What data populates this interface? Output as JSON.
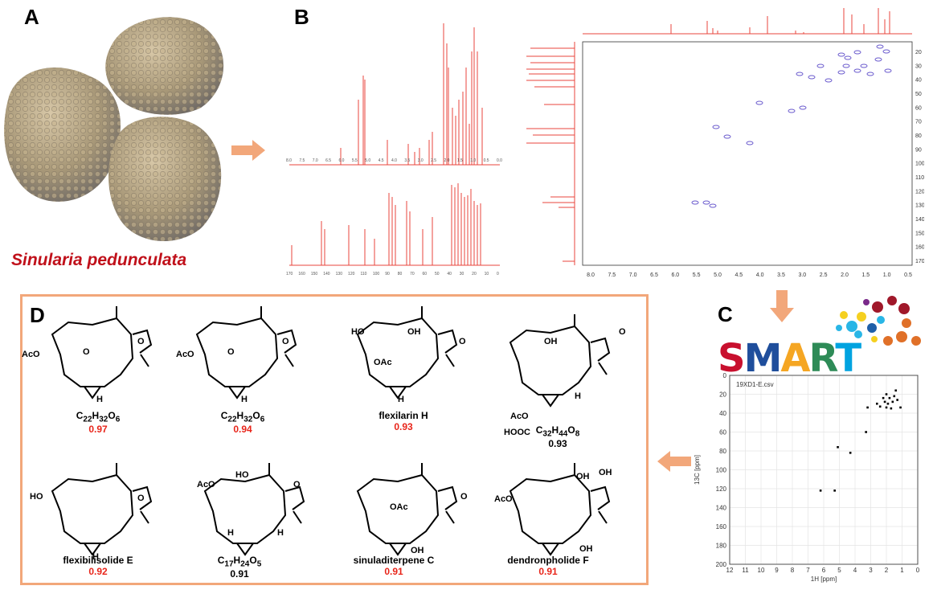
{
  "panels": {
    "a": "A",
    "b": "B",
    "c": "C",
    "d": "D"
  },
  "species": "Sinularia pedunculata",
  "logo_text": [
    "S",
    "M",
    "A",
    "R",
    "T"
  ],
  "logo_colors": [
    "#c8102e",
    "#1f4e9c",
    "#f5a623",
    "#2e8b57",
    "#00a3e0"
  ],
  "spectra": {
    "h1_ticks": [
      "8.0",
      "7.5",
      "7.0",
      "6.5",
      "6.0",
      "5.5",
      "5.0",
      "4.5",
      "4.0",
      "3.5",
      "3.0",
      "2.5",
      "2.0",
      "1.5",
      "1.0",
      "0.5",
      "0.0"
    ],
    "c13_ticks": [
      "170",
      "160",
      "150",
      "140",
      "130",
      "120",
      "110",
      "100",
      "90",
      "80",
      "70",
      "60",
      "50",
      "40",
      "30",
      "20",
      "10",
      "0"
    ],
    "hsqc_x_ticks": [
      "8.0",
      "7.5",
      "7.0",
      "6.5",
      "6.0",
      "5.5",
      "5.0",
      "4.5",
      "4.0",
      "3.5",
      "3.0",
      "2.5",
      "2.0",
      "1.5",
      "1.0",
      "0.5"
    ],
    "hsqc_y_ticks": [
      "20",
      "30",
      "40",
      "50",
      "60",
      "70",
      "80",
      "90",
      "100",
      "110",
      "120",
      "130",
      "140",
      "150",
      "160",
      "170"
    ]
  },
  "chart_data": {
    "type": "scatter",
    "title": "19XD1-E.csv",
    "xlabel": "1H [ppm]",
    "ylabel": "13C [ppm]",
    "xlim": [
      12,
      0
    ],
    "ylim": [
      200,
      0
    ],
    "x_ticks": [
      "12",
      "11",
      "10",
      "9",
      "8",
      "7",
      "6",
      "5",
      "4",
      "3",
      "2",
      "1",
      "0"
    ],
    "y_ticks": [
      "0",
      "20",
      "40",
      "60",
      "80",
      "100",
      "120",
      "140",
      "160",
      "180",
      "200"
    ],
    "grid": true,
    "points": [
      {
        "x": 6.2,
        "y": 122
      },
      {
        "x": 5.3,
        "y": 122
      },
      {
        "x": 5.1,
        "y": 76
      },
      {
        "x": 4.3,
        "y": 82
      },
      {
        "x": 3.3,
        "y": 60
      },
      {
        "x": 3.2,
        "y": 34
      },
      {
        "x": 2.6,
        "y": 30
      },
      {
        "x": 2.4,
        "y": 33
      },
      {
        "x": 2.2,
        "y": 24
      },
      {
        "x": 2.1,
        "y": 28
      },
      {
        "x": 2.0,
        "y": 20
      },
      {
        "x": 1.9,
        "y": 30
      },
      {
        "x": 1.8,
        "y": 24
      },
      {
        "x": 1.7,
        "y": 35
      },
      {
        "x": 1.6,
        "y": 28
      },
      {
        "x": 1.5,
        "y": 22
      },
      {
        "x": 1.4,
        "y": 16
      },
      {
        "x": 1.3,
        "y": 26
      },
      {
        "x": 1.1,
        "y": 34
      },
      {
        "x": 2.0,
        "y": 34
      }
    ]
  },
  "compounds": [
    {
      "formula_parts": [
        "C",
        "22",
        "H",
        "32",
        "O",
        "6"
      ],
      "name": "",
      "score": "0.97",
      "highlight": true
    },
    {
      "formula_parts": [
        "C",
        "22",
        "H",
        "32",
        "O",
        "6"
      ],
      "name": "",
      "score": "0.94",
      "highlight": true
    },
    {
      "formula_parts": [],
      "name": "flexilarin H",
      "score": "0.93",
      "highlight": true
    },
    {
      "formula_parts": [
        "C",
        "32",
        "H",
        "44",
        "O",
        "8"
      ],
      "name": "",
      "score": "0.93",
      "highlight": false
    },
    {
      "formula_parts": [],
      "name": "flexibilisolide E",
      "score": "0.92",
      "highlight": true
    },
    {
      "formula_parts": [
        "C",
        "17",
        "H",
        "24",
        "O",
        "5"
      ],
      "name": "",
      "score": "0.91",
      "highlight": false
    },
    {
      "formula_parts": [],
      "name": "sinuladiterpene C",
      "score": "0.91",
      "highlight": true
    },
    {
      "formula_parts": [],
      "name": "dendronpholide F",
      "score": "0.91",
      "highlight": true
    }
  ],
  "structure_labels": {
    "aco": "AcO",
    "o": "O",
    "h": "H",
    "oh": "OH",
    "oac": "OAc",
    "ho": "HO",
    "hooc": "HOOC"
  }
}
